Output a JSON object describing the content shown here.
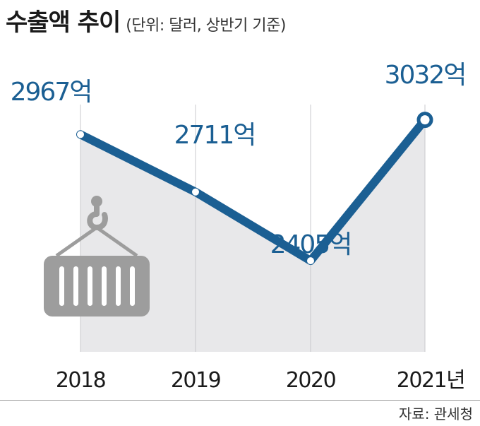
{
  "title": "수출액 추이",
  "subtitle": "(단위: 달러, 상반기 기준)",
  "source": "자료: 관세청",
  "chart_data": {
    "type": "area",
    "categories": [
      "2018",
      "2019",
      "2020",
      "2021년"
    ],
    "values": [
      2967,
      2711,
      2405,
      3032
    ],
    "data_labels": [
      "2967억",
      "2711억",
      "2405억",
      "3032억"
    ],
    "ylim": [
      2000,
      3100
    ],
    "grid": false,
    "colors": {
      "line": "#1b5f93",
      "fill": "#e8e8ea",
      "label": "#1b5f93",
      "icon": "#9d9d9d"
    },
    "icon": "shipping-container-icon"
  }
}
